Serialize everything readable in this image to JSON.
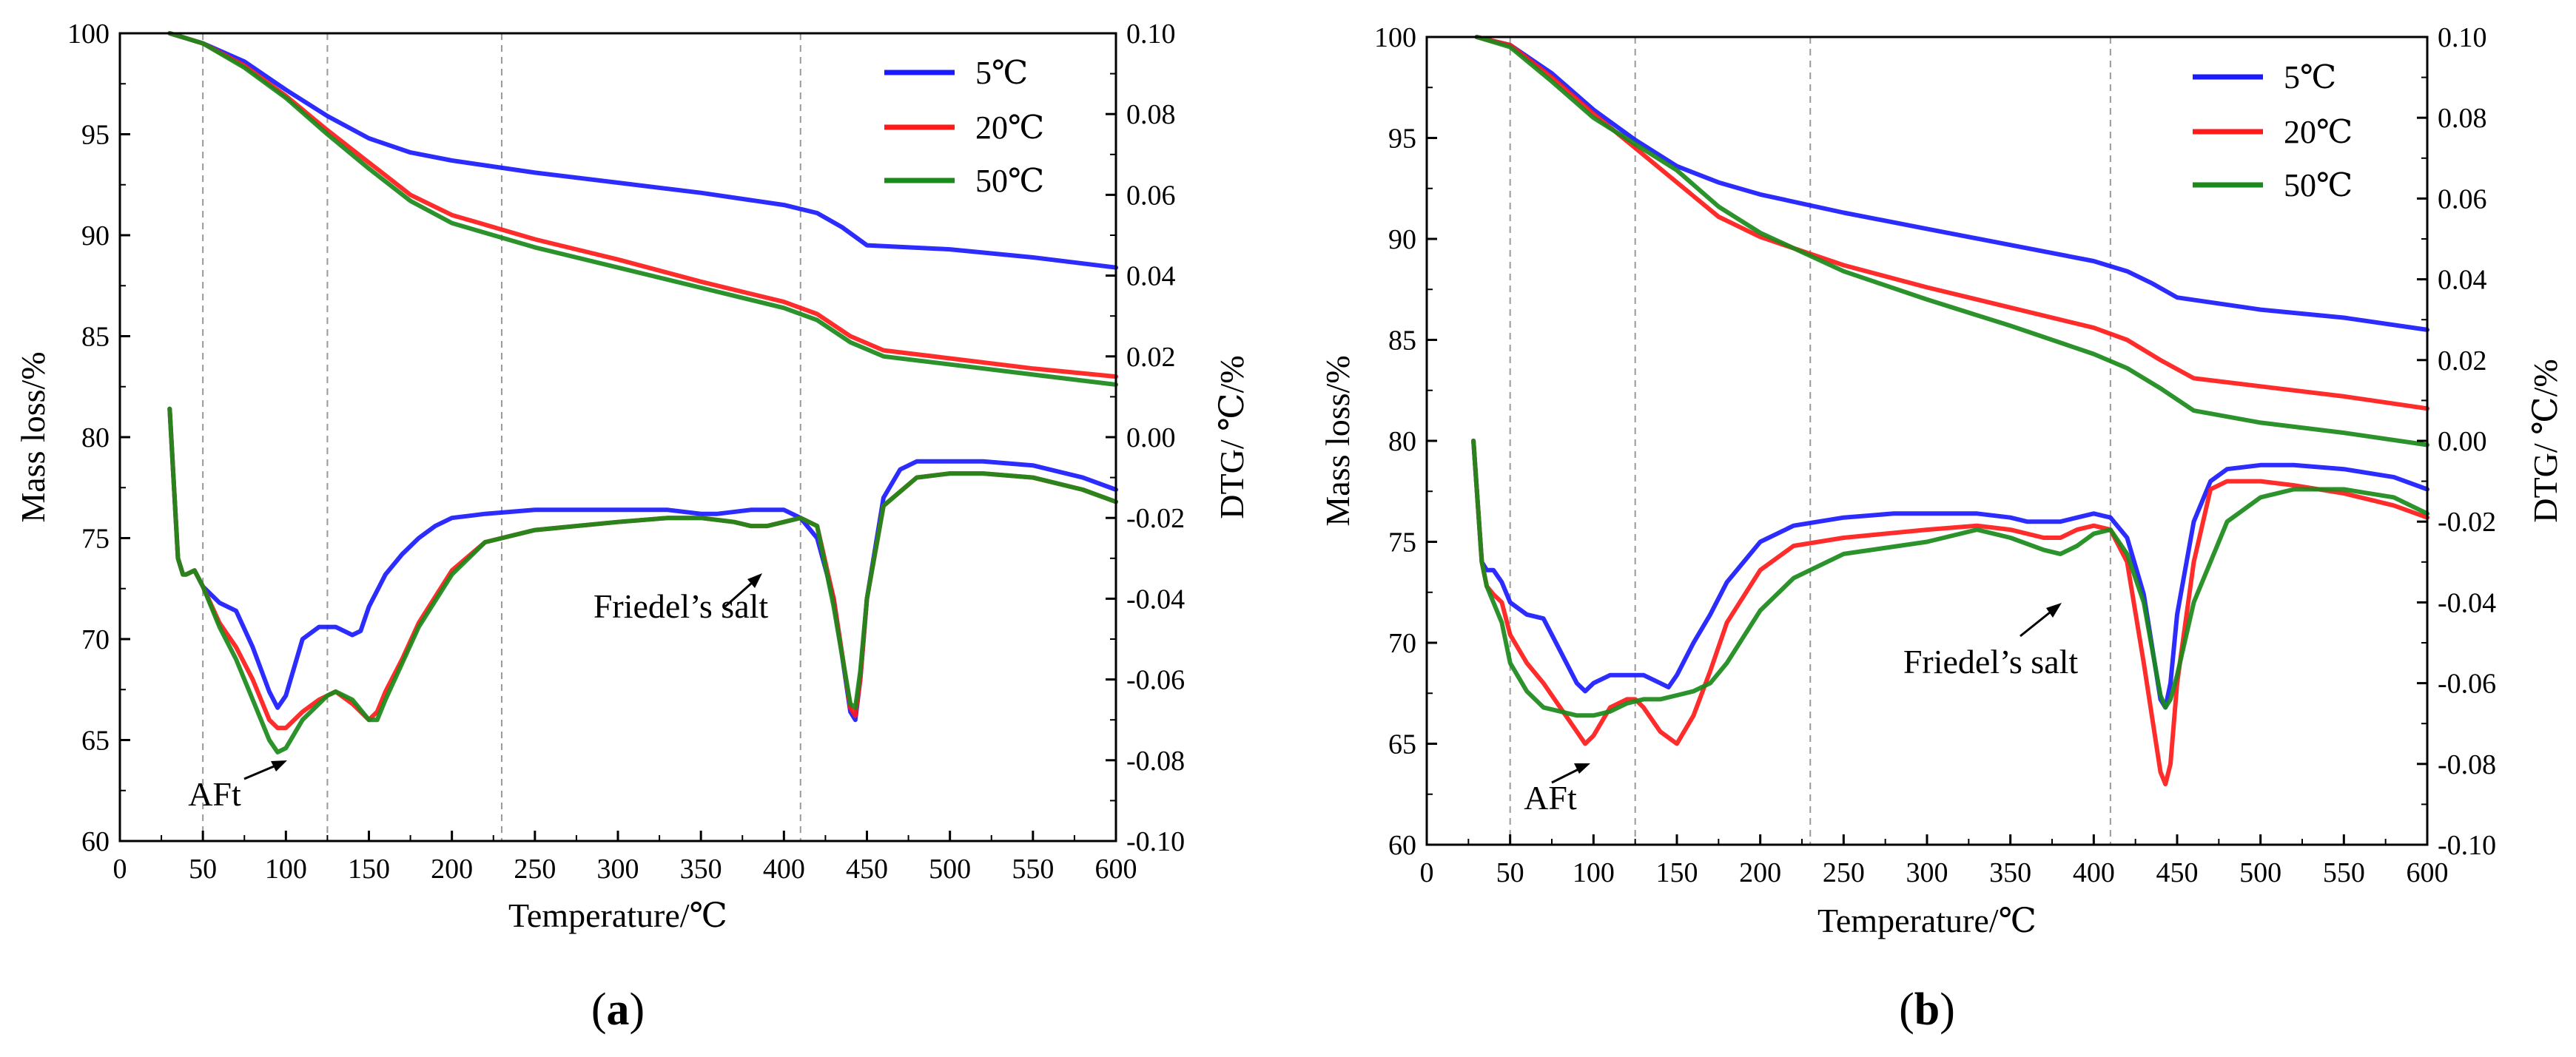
{
  "chart_data": [
    {
      "type": "line",
      "panel_label": "(a)",
      "panel_letter": "a",
      "xlabel": "Temperature/℃",
      "ylabel_left": "Mass loss/%",
      "ylabel_right": "DTG/ ℃/%",
      "xlim": [
        0,
        600
      ],
      "ylim_left": [
        60,
        100
      ],
      "ylim_right": [
        -0.1,
        0.1
      ],
      "xticks": [
        0,
        50,
        100,
        150,
        200,
        250,
        300,
        350,
        400,
        450,
        500,
        550,
        600
      ],
      "yticks_left": [
        60,
        65,
        70,
        75,
        80,
        85,
        90,
        95,
        100
      ],
      "yticks_right": [
        "-0.10",
        "-0.08",
        "-0.06",
        "-0.04",
        "-0.02",
        "0.00",
        "0.02",
        "0.04",
        "0.06",
        "0.08",
        "0.10"
      ],
      "ref_lines_x": [
        50,
        125,
        230,
        410
      ],
      "legend": {
        "position": "top-right",
        "entries": [
          "5℃",
          "20℃",
          "50℃"
        ]
      },
      "annotations": [
        {
          "label": "AFt",
          "x": 100,
          "y": 64.5
        },
        {
          "label": "Friedel’s salt",
          "x": 385,
          "y": 76.0
        }
      ],
      "series": [
        {
          "name": "5℃",
          "color": "#1a1aff",
          "axis": "left",
          "x": [
            30,
            50,
            75,
            100,
            125,
            150,
            175,
            200,
            250,
            300,
            350,
            400,
            420,
            435,
            450,
            500,
            550,
            600
          ],
          "y": [
            100,
            99.5,
            98.6,
            97.2,
            95.9,
            94.8,
            94.1,
            93.7,
            93.1,
            92.6,
            92.1,
            91.5,
            91.1,
            90.4,
            89.5,
            89.3,
            88.9,
            88.4
          ]
        },
        {
          "name": "20℃",
          "color": "#ff1a1a",
          "axis": "left",
          "x": [
            30,
            50,
            75,
            100,
            125,
            150,
            175,
            200,
            250,
            300,
            350,
            400,
            420,
            440,
            460,
            500,
            550,
            600
          ],
          "y": [
            100,
            99.5,
            98.4,
            96.9,
            95.2,
            93.6,
            92.0,
            91.0,
            89.8,
            88.8,
            87.7,
            86.7,
            86.1,
            85.0,
            84.3,
            83.9,
            83.4,
            83.0
          ]
        },
        {
          "name": "50℃",
          "color": "#1a8a1a",
          "axis": "left",
          "x": [
            30,
            50,
            75,
            100,
            125,
            150,
            175,
            200,
            250,
            300,
            350,
            400,
            420,
            440,
            460,
            500,
            550,
            600
          ],
          "y": [
            100,
            99.5,
            98.3,
            96.8,
            95.0,
            93.3,
            91.7,
            90.6,
            89.4,
            88.4,
            87.4,
            86.4,
            85.8,
            84.7,
            84.0,
            83.6,
            83.1,
            82.6
          ]
        },
        {
          "name": "5℃ DTG",
          "color": "#1a1aff",
          "axis": "right",
          "x": [
            30,
            32,
            35,
            38,
            40,
            45,
            50,
            60,
            70,
            80,
            90,
            95,
            100,
            110,
            120,
            130,
            140,
            145,
            150,
            160,
            170,
            180,
            190,
            200,
            220,
            250,
            280,
            300,
            330,
            350,
            360,
            380,
            390,
            400,
            410,
            420,
            430,
            440,
            443,
            446,
            450,
            460,
            470,
            480,
            500,
            520,
            550,
            580,
            600
          ],
          "y": [
            0.007,
            -0.008,
            -0.03,
            -0.034,
            -0.034,
            -0.033,
            -0.037,
            -0.041,
            -0.043,
            -0.052,
            -0.063,
            -0.067,
            -0.064,
            -0.05,
            -0.047,
            -0.047,
            -0.049,
            -0.048,
            -0.042,
            -0.034,
            -0.029,
            -0.025,
            -0.022,
            -0.02,
            -0.019,
            -0.018,
            -0.018,
            -0.018,
            -0.018,
            -0.019,
            -0.019,
            -0.018,
            -0.018,
            -0.018,
            -0.02,
            -0.025,
            -0.04,
            -0.068,
            -0.07,
            -0.06,
            -0.04,
            -0.015,
            -0.008,
            -0.006,
            -0.006,
            -0.006,
            -0.007,
            -0.01,
            -0.013
          ]
        },
        {
          "name": "20℃ DTG",
          "color": "#ff1a1a",
          "axis": "right",
          "x": [
            30,
            32,
            35,
            38,
            40,
            45,
            50,
            60,
            70,
            80,
            90,
            95,
            100,
            110,
            120,
            125,
            130,
            140,
            150,
            155,
            160,
            170,
            180,
            200,
            220,
            250,
            300,
            330,
            350,
            370,
            380,
            390,
            400,
            410,
            420,
            430,
            440,
            443,
            446,
            450,
            460,
            480,
            500,
            520,
            550,
            580,
            600
          ],
          "y": [
            0.007,
            -0.008,
            -0.03,
            -0.034,
            -0.034,
            -0.033,
            -0.037,
            -0.046,
            -0.052,
            -0.06,
            -0.07,
            -0.072,
            -0.072,
            -0.068,
            -0.065,
            -0.064,
            -0.063,
            -0.066,
            -0.07,
            -0.068,
            -0.063,
            -0.055,
            -0.046,
            -0.033,
            -0.026,
            -0.023,
            -0.021,
            -0.02,
            -0.02,
            -0.021,
            -0.022,
            -0.022,
            -0.021,
            -0.02,
            -0.022,
            -0.04,
            -0.067,
            -0.069,
            -0.06,
            -0.04,
            -0.017,
            -0.01,
            -0.009,
            -0.009,
            -0.01,
            -0.013,
            -0.016
          ]
        },
        {
          "name": "50℃ DTG",
          "color": "#1a8a1a",
          "axis": "right",
          "x": [
            30,
            32,
            35,
            38,
            40,
            45,
            50,
            60,
            70,
            80,
            90,
            95,
            100,
            110,
            120,
            125,
            130,
            140,
            150,
            155,
            160,
            170,
            180,
            200,
            220,
            250,
            300,
            330,
            350,
            370,
            380,
            390,
            400,
            410,
            420,
            430,
            440,
            443,
            446,
            450,
            460,
            480,
            500,
            520,
            550,
            580,
            600
          ],
          "y": [
            0.007,
            -0.008,
            -0.03,
            -0.034,
            -0.034,
            -0.033,
            -0.037,
            -0.047,
            -0.055,
            -0.065,
            -0.075,
            -0.078,
            -0.077,
            -0.07,
            -0.066,
            -0.064,
            -0.063,
            -0.065,
            -0.07,
            -0.07,
            -0.065,
            -0.056,
            -0.047,
            -0.034,
            -0.026,
            -0.023,
            -0.021,
            -0.02,
            -0.02,
            -0.021,
            -0.022,
            -0.022,
            -0.021,
            -0.02,
            -0.022,
            -0.042,
            -0.066,
            -0.067,
            -0.058,
            -0.04,
            -0.017,
            -0.01,
            -0.009,
            -0.009,
            -0.01,
            -0.013,
            -0.016
          ]
        }
      ]
    },
    {
      "type": "line",
      "panel_label": "(b)",
      "panel_letter": "b",
      "xlabel": "Temperature/℃",
      "ylabel_left": "Mass loss/%",
      "ylabel_right": "DTG/ ℃/%",
      "xlim": [
        0,
        600
      ],
      "ylim_left": [
        60,
        100
      ],
      "ylim_right": [
        -0.1,
        0.1
      ],
      "xticks": [
        0,
        50,
        100,
        150,
        200,
        250,
        300,
        350,
        400,
        450,
        500,
        550,
        600
      ],
      "yticks_left": [
        60,
        65,
        70,
        75,
        80,
        85,
        90,
        95,
        100
      ],
      "yticks_right": [
        "-0.10",
        "-0.08",
        "-0.06",
        "-0.04",
        "-0.02",
        "0.00",
        "0.02",
        "0.04",
        "0.06",
        "0.08",
        "0.10"
      ],
      "ref_lines_x": [
        50,
        125,
        230,
        410
      ],
      "legend": {
        "position": "top-right",
        "entries": [
          "5℃",
          "20℃",
          "50℃"
        ]
      },
      "annotations": [
        {
          "label": "AFt",
          "x": 95,
          "y": 64.5
        },
        {
          "label": "Friedel’s salt",
          "x": 380,
          "y": 74.0
        }
      ],
      "series": [
        {
          "name": "5℃",
          "color": "#1a1aff",
          "axis": "left",
          "x": [
            30,
            50,
            75,
            100,
            125,
            150,
            175,
            200,
            250,
            300,
            350,
            400,
            420,
            435,
            450,
            500,
            550,
            600
          ],
          "y": [
            100,
            99.6,
            98.2,
            96.4,
            94.9,
            93.6,
            92.8,
            92.2,
            91.3,
            90.5,
            89.7,
            88.9,
            88.4,
            87.8,
            87.1,
            86.5,
            86.1,
            85.5
          ]
        },
        {
          "name": "20℃",
          "color": "#ff1a1a",
          "axis": "left",
          "x": [
            30,
            50,
            75,
            100,
            125,
            150,
            175,
            200,
            250,
            300,
            350,
            400,
            420,
            440,
            460,
            500,
            550,
            600
          ],
          "y": [
            100,
            99.6,
            98.0,
            96.2,
            94.5,
            92.8,
            91.1,
            90.1,
            88.7,
            87.6,
            86.6,
            85.6,
            85.0,
            84.0,
            83.1,
            82.7,
            82.2,
            81.6
          ]
        },
        {
          "name": "50℃",
          "color": "#1a8a1a",
          "axis": "left",
          "x": [
            30,
            50,
            75,
            100,
            125,
            150,
            175,
            200,
            250,
            300,
            350,
            400,
            420,
            440,
            460,
            500,
            550,
            600
          ],
          "y": [
            100,
            99.5,
            97.8,
            96.0,
            94.7,
            93.4,
            91.6,
            90.3,
            88.4,
            87.0,
            85.7,
            84.3,
            83.6,
            82.6,
            81.5,
            80.9,
            80.4,
            79.8
          ]
        },
        {
          "name": "5℃ DTG",
          "color": "#1a1aff",
          "axis": "right",
          "x": [
            28,
            30,
            33,
            36,
            40,
            45,
            50,
            60,
            70,
            80,
            90,
            95,
            100,
            110,
            120,
            130,
            140,
            145,
            150,
            160,
            170,
            180,
            200,
            220,
            250,
            280,
            300,
            330,
            350,
            360,
            380,
            390,
            400,
            410,
            420,
            430,
            440,
            443,
            446,
            450,
            460,
            470,
            480,
            500,
            520,
            550,
            580,
            600
          ],
          "y": [
            0.0,
            -0.012,
            -0.03,
            -0.032,
            -0.032,
            -0.035,
            -0.04,
            -0.043,
            -0.044,
            -0.052,
            -0.06,
            -0.062,
            -0.06,
            -0.058,
            -0.058,
            -0.058,
            -0.06,
            -0.061,
            -0.058,
            -0.05,
            -0.043,
            -0.035,
            -0.025,
            -0.021,
            -0.019,
            -0.018,
            -0.018,
            -0.018,
            -0.019,
            -0.02,
            -0.02,
            -0.019,
            -0.018,
            -0.019,
            -0.024,
            -0.038,
            -0.064,
            -0.066,
            -0.06,
            -0.043,
            -0.02,
            -0.01,
            -0.007,
            -0.006,
            -0.006,
            -0.007,
            -0.009,
            -0.012
          ]
        },
        {
          "name": "20℃ DTG",
          "color": "#ff1a1a",
          "axis": "right",
          "x": [
            28,
            30,
            33,
            36,
            40,
            45,
            50,
            60,
            70,
            80,
            90,
            95,
            100,
            110,
            120,
            125,
            130,
            140,
            150,
            160,
            170,
            180,
            200,
            220,
            250,
            300,
            330,
            350,
            370,
            380,
            390,
            400,
            410,
            420,
            430,
            440,
            443,
            446,
            450,
            460,
            470,
            480,
            500,
            520,
            550,
            580,
            600
          ],
          "y": [
            0.0,
            -0.012,
            -0.03,
            -0.036,
            -0.038,
            -0.04,
            -0.048,
            -0.055,
            -0.06,
            -0.066,
            -0.072,
            -0.075,
            -0.073,
            -0.066,
            -0.064,
            -0.064,
            -0.066,
            -0.072,
            -0.075,
            -0.068,
            -0.057,
            -0.045,
            -0.032,
            -0.026,
            -0.024,
            -0.022,
            -0.021,
            -0.022,
            -0.024,
            -0.024,
            -0.022,
            -0.021,
            -0.022,
            -0.03,
            -0.055,
            -0.082,
            -0.085,
            -0.08,
            -0.06,
            -0.03,
            -0.012,
            -0.01,
            -0.01,
            -0.011,
            -0.013,
            -0.016,
            -0.019
          ]
        },
        {
          "name": "50℃ DTG",
          "color": "#1a8a1a",
          "axis": "right",
          "x": [
            28,
            30,
            33,
            36,
            40,
            45,
            50,
            60,
            70,
            80,
            90,
            100,
            110,
            120,
            130,
            140,
            150,
            160,
            170,
            180,
            200,
            220,
            250,
            300,
            330,
            350,
            370,
            380,
            390,
            400,
            410,
            420,
            430,
            440,
            443,
            446,
            450,
            460,
            480,
            500,
            520,
            550,
            580,
            600
          ],
          "y": [
            0.0,
            -0.012,
            -0.03,
            -0.036,
            -0.04,
            -0.045,
            -0.055,
            -0.062,
            -0.066,
            -0.067,
            -0.068,
            -0.068,
            -0.067,
            -0.065,
            -0.064,
            -0.064,
            -0.063,
            -0.062,
            -0.06,
            -0.055,
            -0.042,
            -0.034,
            -0.028,
            -0.025,
            -0.022,
            -0.024,
            -0.027,
            -0.028,
            -0.026,
            -0.023,
            -0.022,
            -0.028,
            -0.04,
            -0.063,
            -0.066,
            -0.064,
            -0.058,
            -0.04,
            -0.02,
            -0.014,
            -0.012,
            -0.012,
            -0.014,
            -0.018
          ]
        }
      ]
    }
  ]
}
